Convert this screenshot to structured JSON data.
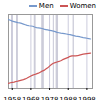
{
  "chart_data": {
    "type": "line",
    "title": "",
    "x": [
      1956,
      1957,
      1958,
      1959,
      1960,
      1961,
      1962,
      1963,
      1964,
      1965,
      1966,
      1967,
      1968,
      1969,
      1970,
      1971,
      1972,
      1973,
      1974,
      1975,
      1976,
      1977,
      1978,
      1979,
      1980,
      1981,
      1982,
      1983,
      1984,
      1985,
      1986,
      1987,
      1988,
      1989,
      1990,
      1991,
      1992,
      1993,
      1994,
      1995,
      1996,
      1997,
      1998,
      1999,
      2000
    ],
    "series": [
      {
        "name": "Men",
        "color": "#7799cc",
        "values": [
          86.0,
          85.5,
          84.8,
          84.4,
          84.0,
          83.6,
          83.4,
          83.0,
          82.5,
          82.0,
          81.5,
          81.2,
          81.0,
          80.8,
          80.2,
          79.7,
          79.5,
          79.3,
          79.0,
          78.5,
          78.2,
          77.9,
          77.6,
          77.3,
          77.0,
          76.6,
          76.0,
          75.7,
          75.4,
          75.2,
          75.0,
          74.7,
          74.4,
          74.2,
          73.8,
          73.4,
          73.0,
          72.8,
          72.6,
          72.2,
          71.9,
          71.7,
          71.4,
          71.1,
          70.8
        ]
      },
      {
        "name": "Women",
        "color": "#cc5555",
        "values": [
          36.0,
          36.5,
          36.8,
          37.0,
          37.5,
          37.8,
          38.2,
          38.6,
          39.0,
          39.5,
          40.2,
          41.0,
          41.8,
          42.5,
          43.0,
          43.5,
          44.0,
          44.8,
          45.6,
          46.2,
          47.2,
          48.2,
          49.5,
          50.8,
          51.8,
          52.3,
          52.8,
          53.2,
          53.8,
          54.6,
          55.2,
          55.8,
          56.4,
          57.2,
          57.6,
          57.5,
          57.6,
          57.7,
          58.2,
          58.6,
          58.9,
          59.2,
          59.4,
          59.6,
          59.8
        ]
      }
    ],
    "recession_bands": [
      [
        1957.6,
        1958.6
      ],
      [
        1960.3,
        1961.3
      ],
      [
        1969.8,
        1970.8
      ],
      [
        1973.8,
        1975.2
      ],
      [
        1980.0,
        1980.6
      ],
      [
        1981.5,
        1982.8
      ],
      [
        1990.6,
        1991.3
      ]
    ],
    "xlim": [
      1956,
      2001
    ],
    "xticks": [
      1958,
      1968,
      1978,
      1988,
      1998
    ],
    "ylim": [
      32,
      90
    ],
    "yticks": [],
    "tick_labels": "x",
    "grid": true,
    "legend": "upper right"
  }
}
